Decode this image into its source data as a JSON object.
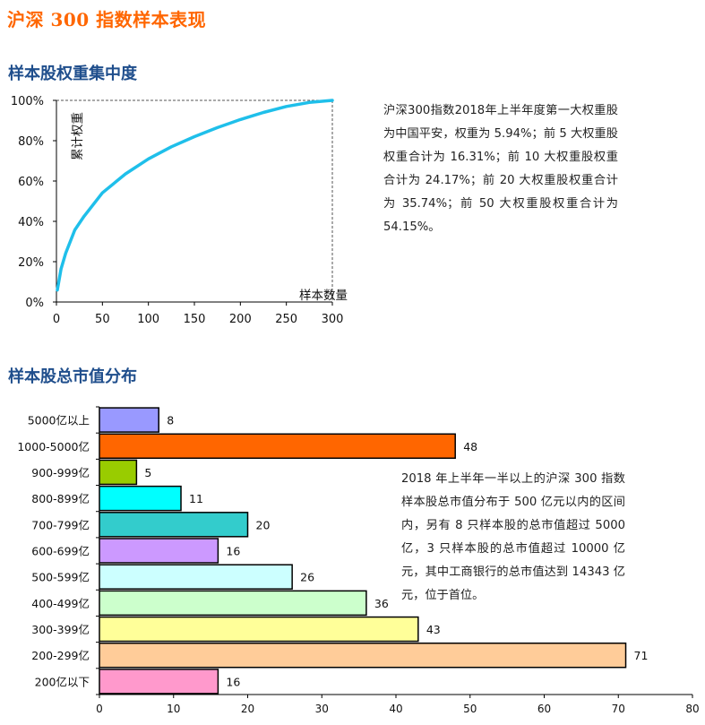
{
  "page_title": "沪深 300 指数样本表现",
  "section1": {
    "title": "样本股权重集中度",
    "description": "沪深300指数2018年上半年度第一大权重股为中国平安，权重为 5.94%；前 5 大权重股权重合计为 16.31%；前 10 大权重股权重合计为 24.17%；前 20 大权重股权重合计为 35.74%；前 50 大权重股权重合计为 54.15%。"
  },
  "section2": {
    "title": "样本股总市值分布",
    "description": "2018 年上半年一半以上的沪深 300 指数样本股总市值分布于 500 亿元以内的区间内，另有 8 只样本股的总市值超过 5000 亿，3 只样本股的总市值超过 10000 亿元，其中工商银行的总市值达到 14343 亿元，位于首位。"
  },
  "colors": {
    "title": "#ff6600",
    "section_title": "#1f4e8c",
    "curve": "#1fbfea"
  },
  "chart_data": [
    {
      "type": "line",
      "xlabel": "样本数量",
      "ylabel": "累计权重",
      "xlim": [
        0,
        300
      ],
      "ylim": [
        0,
        100
      ],
      "x_ticks": [
        "0",
        "50",
        "100",
        "150",
        "200",
        "250",
        "300"
      ],
      "y_ticks": [
        "0%",
        "20%",
        "40%",
        "60%",
        "80%",
        "100%"
      ],
      "x": [
        1,
        5,
        10,
        20,
        30,
        50,
        75,
        100,
        125,
        150,
        175,
        200,
        225,
        250,
        275,
        300
      ],
      "y": [
        5.94,
        16.31,
        24.17,
        35.74,
        42.5,
        54.15,
        63.5,
        71,
        77,
        82,
        86.5,
        90.5,
        94,
        97,
        99,
        100
      ]
    },
    {
      "type": "bar",
      "orientation": "horizontal",
      "categories": [
        "5000亿以上",
        "1000-5000亿",
        "900-999亿",
        "800-899亿",
        "700-799亿",
        "600-699亿",
        "500-599亿",
        "400-499亿",
        "300-399亿",
        "200-299亿",
        "200亿以下"
      ],
      "values": [
        8,
        48,
        5,
        11,
        20,
        16,
        26,
        36,
        43,
        71,
        16
      ],
      "colors": [
        "#9999ff",
        "#ff6600",
        "#99cc00",
        "#00ffff",
        "#33cccc",
        "#cc99ff",
        "#ccffff",
        "#ccffcc",
        "#ffff99",
        "#ffcc99",
        "#ff99cc"
      ],
      "xlim": [
        0,
        80
      ],
      "x_ticks": [
        "0",
        "10",
        "20",
        "30",
        "40",
        "50",
        "60",
        "70",
        "80"
      ]
    }
  ]
}
